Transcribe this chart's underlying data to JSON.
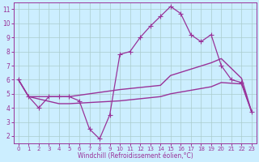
{
  "xlabel": "Windchill (Refroidissement éolien,°C)",
  "xlim": [
    -0.5,
    23.5
  ],
  "ylim": [
    1.5,
    11.5
  ],
  "xticks": [
    0,
    1,
    2,
    3,
    4,
    5,
    6,
    7,
    8,
    9,
    10,
    11,
    12,
    13,
    14,
    15,
    16,
    17,
    18,
    19,
    20,
    21,
    22,
    23
  ],
  "yticks": [
    2,
    3,
    4,
    5,
    6,
    7,
    8,
    9,
    10,
    11
  ],
  "background_color": "#cceeff",
  "grid_color": "#aacccc",
  "line_color": "#993399",
  "lines": [
    {
      "x": [
        0,
        1,
        2,
        3,
        4,
        5,
        6,
        7,
        8,
        9,
        10,
        11,
        12,
        13,
        14,
        15,
        16,
        17,
        18,
        19,
        20,
        21,
        22,
        23
      ],
      "y": [
        6.0,
        4.8,
        4.0,
        4.8,
        4.8,
        4.8,
        4.5,
        2.5,
        1.8,
        3.5,
        7.8,
        8.0,
        9.0,
        9.8,
        10.5,
        11.2,
        10.7,
        9.2,
        8.7,
        9.2,
        7.0,
        6.0,
        5.8,
        3.7
      ],
      "marker": "+",
      "markersize": 4,
      "linewidth": 0.9,
      "linestyle": "-"
    },
    {
      "x": [
        0,
        1,
        4,
        5,
        10,
        14,
        15,
        19,
        20,
        22,
        23
      ],
      "y": [
        6.0,
        4.8,
        4.8,
        4.8,
        5.3,
        5.6,
        6.3,
        7.2,
        7.5,
        6.1,
        3.7
      ],
      "marker": null,
      "markersize": 0,
      "linewidth": 1.0,
      "linestyle": "-"
    },
    {
      "x": [
        0,
        1,
        4,
        5,
        10,
        14,
        15,
        19,
        20,
        22,
        23
      ],
      "y": [
        6.0,
        4.8,
        4.3,
        4.3,
        4.5,
        4.8,
        5.0,
        5.5,
        5.8,
        5.7,
        3.7
      ],
      "marker": null,
      "markersize": 0,
      "linewidth": 1.0,
      "linestyle": "-"
    }
  ],
  "xlabel_fontsize": 5.5,
  "tick_fontsize_x": 5.0,
  "tick_fontsize_y": 5.5
}
